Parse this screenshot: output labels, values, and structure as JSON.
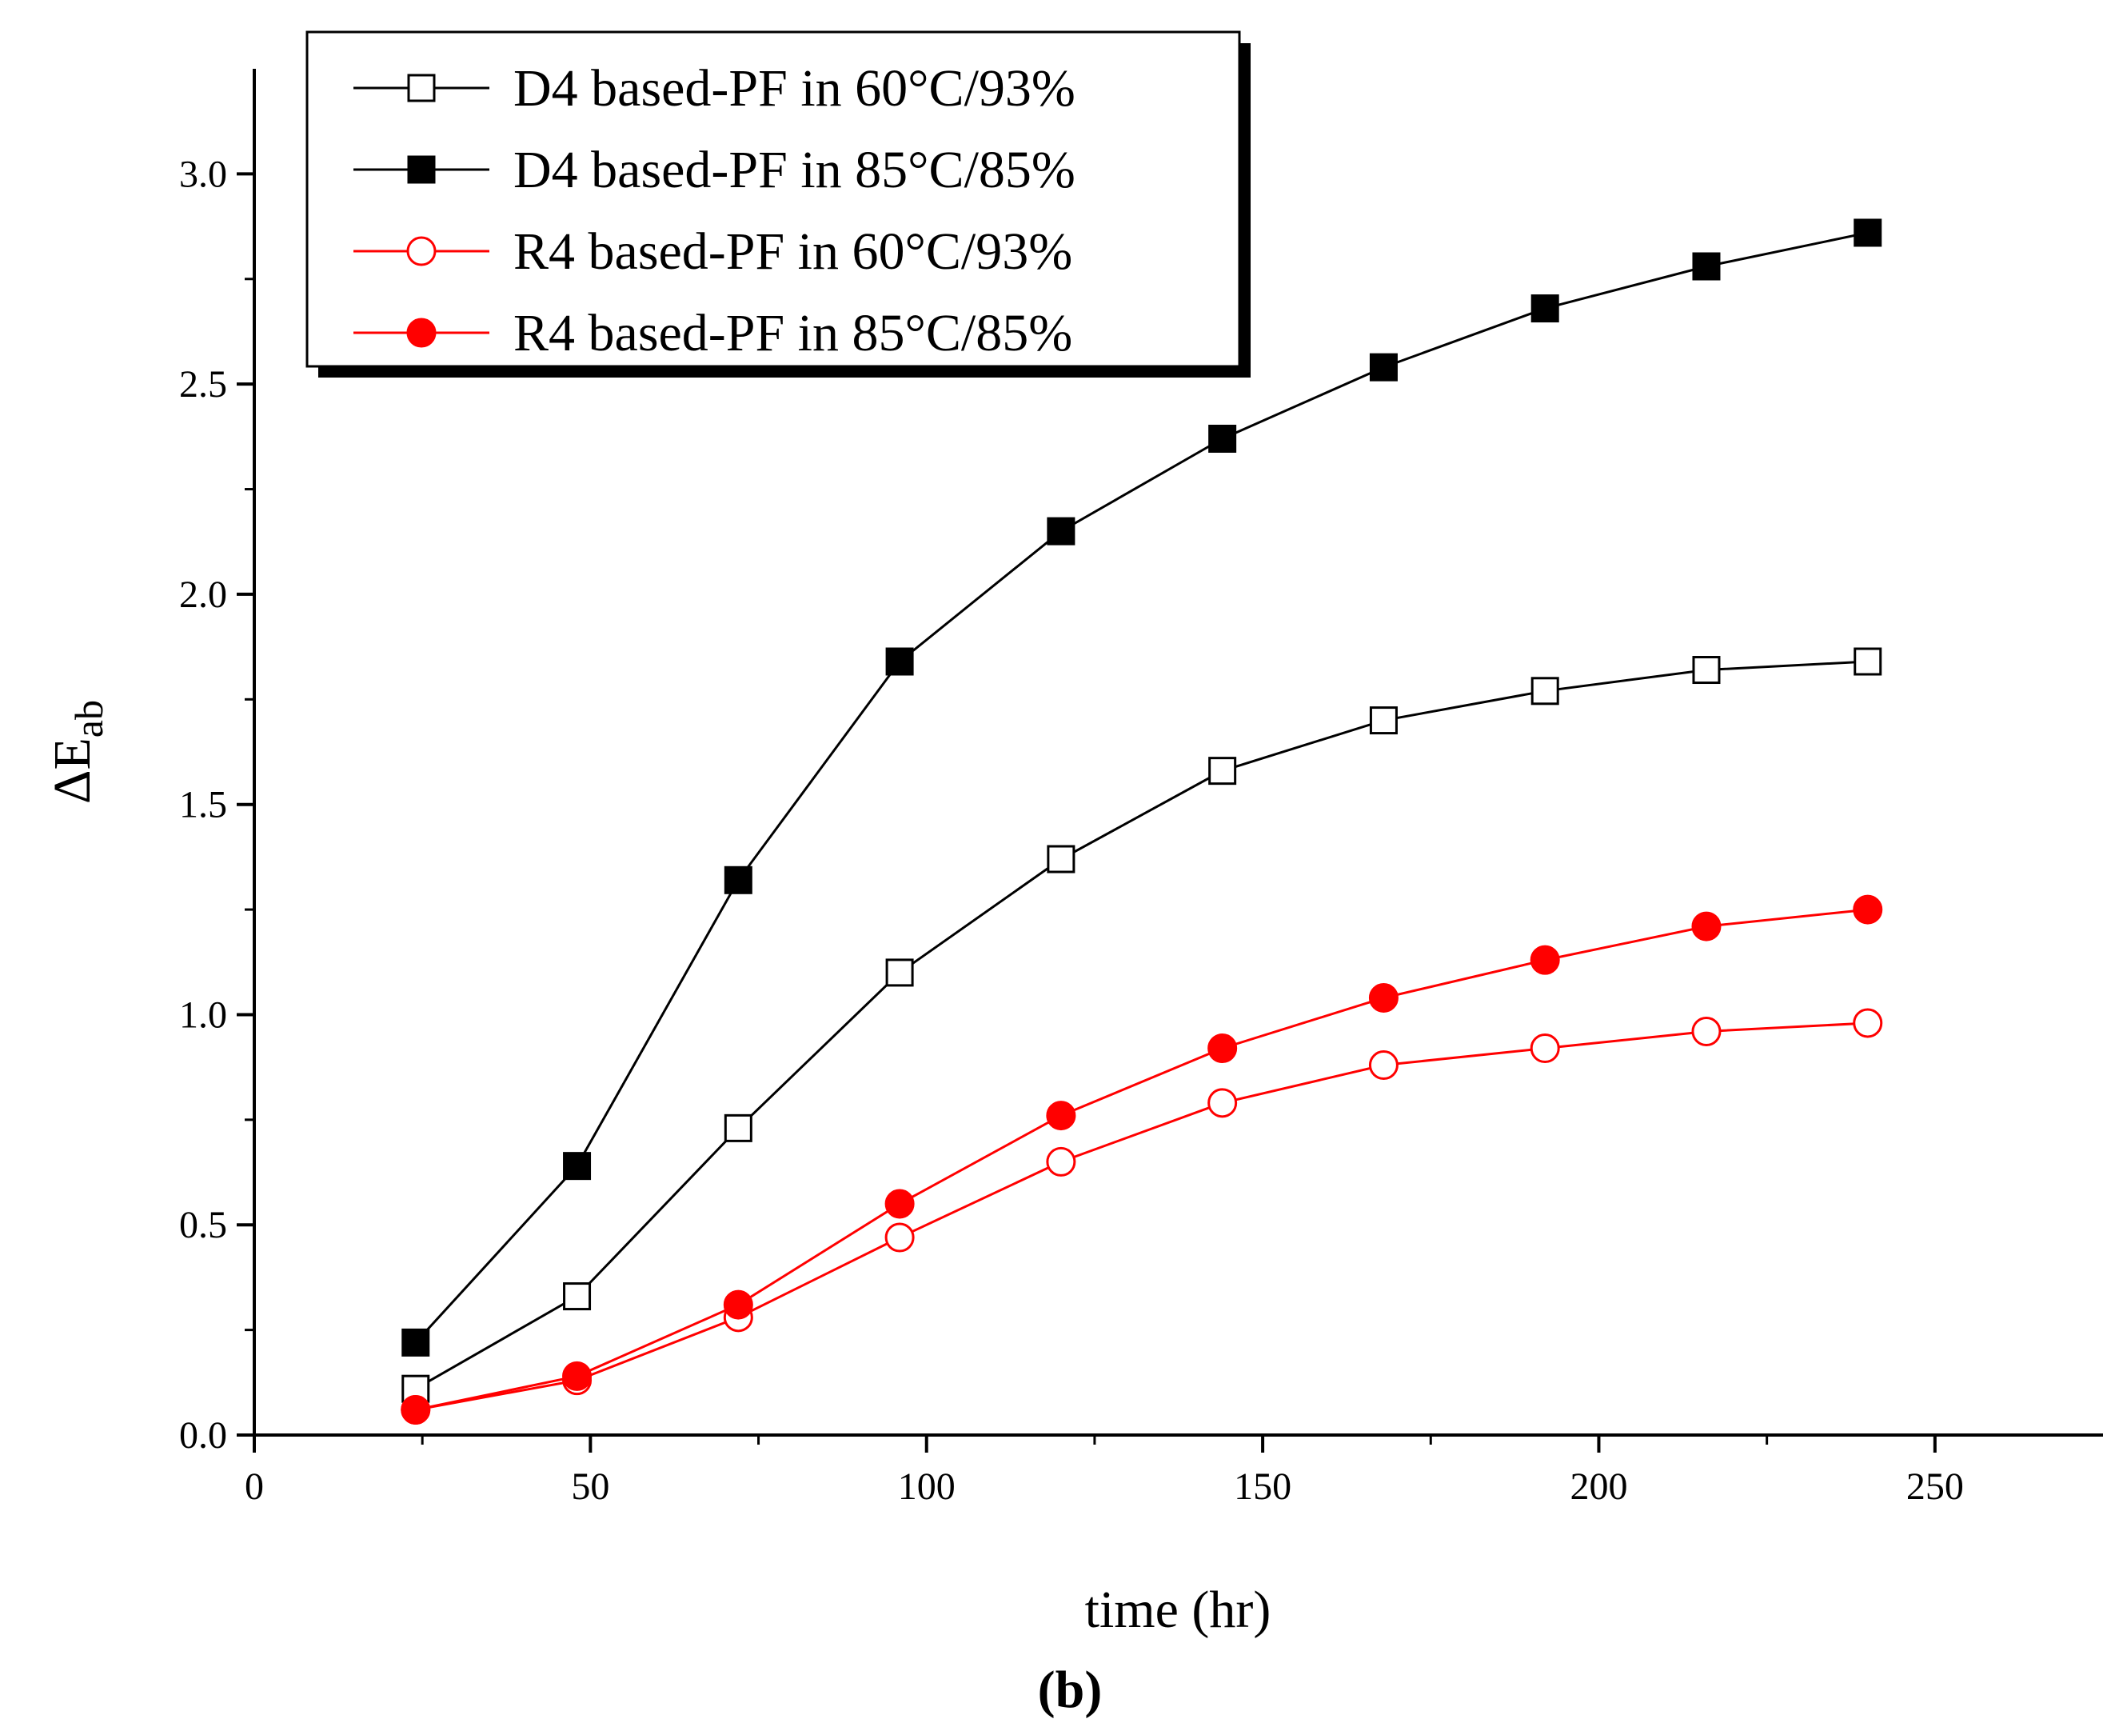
{
  "chart_data": {
    "type": "line",
    "title": "",
    "xlabel": "time (hr)",
    "ylabel": "ΔE",
    "ylabel_subscript": "ab",
    "caption": "(b)",
    "xlim": [
      0,
      275
    ],
    "ylim": [
      0,
      3.25
    ],
    "x_ticks": [
      0,
      50,
      100,
      150,
      200,
      250
    ],
    "x_tick_labels": [
      "0",
      "50",
      "100",
      "150",
      "200",
      "250"
    ],
    "y_ticks": [
      0.0,
      0.5,
      1.0,
      1.5,
      2.0,
      2.5,
      3.0
    ],
    "y_tick_labels": [
      "0.0",
      "0.5",
      "1.0",
      "1.5",
      "2.0",
      "2.5",
      "3.0"
    ],
    "legend_position": "top-left",
    "x": [
      24,
      48,
      72,
      96,
      120,
      144,
      168,
      192,
      216,
      240
    ],
    "series": [
      {
        "name": "D4 based-PF in 60°C/93%",
        "marker": "square-open",
        "color": "#000000",
        "values": [
          0.11,
          0.33,
          0.73,
          1.1,
          1.37,
          1.58,
          1.7,
          1.77,
          1.82,
          1.84
        ]
      },
      {
        "name": "D4 based-PF in 85°C/85%",
        "marker": "square-filled",
        "color": "#000000",
        "values": [
          0.22,
          0.64,
          1.32,
          1.84,
          2.15,
          2.37,
          2.54,
          2.68,
          2.78,
          2.86
        ]
      },
      {
        "name": "R4 based-PF in 60°C/93%",
        "marker": "circle-open",
        "color": "#ff0000",
        "values": [
          0.06,
          0.13,
          0.28,
          0.47,
          0.65,
          0.79,
          0.88,
          0.92,
          0.96,
          0.98
        ]
      },
      {
        "name": "R4 based-PF in 85°C/85%",
        "marker": "circle-filled",
        "color": "#ff0000",
        "values": [
          0.06,
          0.14,
          0.31,
          0.55,
          0.76,
          0.92,
          1.04,
          1.13,
          1.21,
          1.25
        ]
      }
    ]
  }
}
